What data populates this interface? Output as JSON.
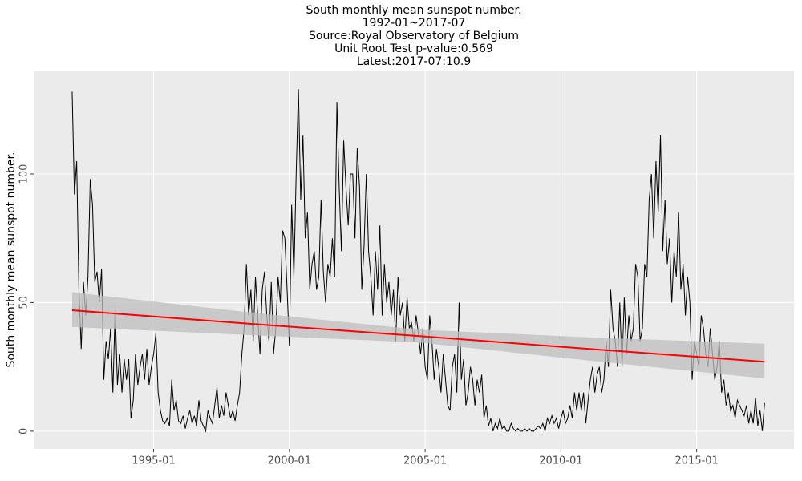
{
  "chart_data": {
    "type": "line",
    "title": [
      "South monthly mean sunspot number.",
      "1992-01~2017-07",
      "Source:Royal Observatory of Belgium",
      "Unit Root Test p-value:0.569",
      "Latest:2017-07:10.9"
    ],
    "y_label": "South monthly mean sunspot number.",
    "x": [
      "1992-01",
      "1992-02",
      "1992-03",
      "1992-04",
      "1992-05",
      "1992-06",
      "1992-07",
      "1992-08",
      "1992-09",
      "1992-10",
      "1992-11",
      "1992-12",
      "1993-01",
      "1993-02",
      "1993-03",
      "1993-04",
      "1993-05",
      "1993-06",
      "1993-07",
      "1993-08",
      "1993-09",
      "1993-10",
      "1993-11",
      "1993-12",
      "1994-01",
      "1994-02",
      "1994-03",
      "1994-04",
      "1994-05",
      "1994-06",
      "1994-07",
      "1994-08",
      "1994-09",
      "1994-10",
      "1994-11",
      "1994-12",
      "1995-01",
      "1995-02",
      "1995-03",
      "1995-04",
      "1995-05",
      "1995-06",
      "1995-07",
      "1995-08",
      "1995-09",
      "1995-10",
      "1995-11",
      "1995-12",
      "1996-01",
      "1996-02",
      "1996-03",
      "1996-04",
      "1996-05",
      "1996-06",
      "1996-07",
      "1996-08",
      "1996-09",
      "1996-10",
      "1996-11",
      "1996-12",
      "1997-01",
      "1997-02",
      "1997-03",
      "1997-04",
      "1997-05",
      "1997-06",
      "1997-07",
      "1997-08",
      "1997-09",
      "1997-10",
      "1997-11",
      "1997-12",
      "1998-01",
      "1998-02",
      "1998-03",
      "1998-04",
      "1998-05",
      "1998-06",
      "1998-07",
      "1998-08",
      "1998-09",
      "1998-10",
      "1998-11",
      "1998-12",
      "1999-01",
      "1999-02",
      "1999-03",
      "1999-04",
      "1999-05",
      "1999-06",
      "1999-07",
      "1999-08",
      "1999-09",
      "1999-10",
      "1999-11",
      "1999-12",
      "2000-01",
      "2000-02",
      "2000-03",
      "2000-04",
      "2000-05",
      "2000-06",
      "2000-07",
      "2000-08",
      "2000-09",
      "2000-10",
      "2000-11",
      "2000-12",
      "2001-01",
      "2001-02",
      "2001-03",
      "2001-04",
      "2001-05",
      "2001-06",
      "2001-07",
      "2001-08",
      "2001-09",
      "2001-10",
      "2001-11",
      "2001-12",
      "2002-01",
      "2002-02",
      "2002-03",
      "2002-04",
      "2002-05",
      "2002-06",
      "2002-07",
      "2002-08",
      "2002-09",
      "2002-10",
      "2002-11",
      "2002-12",
      "2003-01",
      "2003-02",
      "2003-03",
      "2003-04",
      "2003-05",
      "2003-06",
      "2003-07",
      "2003-08",
      "2003-09",
      "2003-10",
      "2003-11",
      "2003-12",
      "2004-01",
      "2004-02",
      "2004-03",
      "2004-04",
      "2004-05",
      "2004-06",
      "2004-07",
      "2004-08",
      "2004-09",
      "2004-10",
      "2004-11",
      "2004-12",
      "2005-01",
      "2005-02",
      "2005-03",
      "2005-04",
      "2005-05",
      "2005-06",
      "2005-07",
      "2005-08",
      "2005-09",
      "2005-10",
      "2005-11",
      "2005-12",
      "2006-01",
      "2006-02",
      "2006-03",
      "2006-04",
      "2006-05",
      "2006-06",
      "2006-07",
      "2006-08",
      "2006-09",
      "2006-10",
      "2006-11",
      "2006-12",
      "2007-01",
      "2007-02",
      "2007-03",
      "2007-04",
      "2007-05",
      "2007-06",
      "2007-07",
      "2007-08",
      "2007-09",
      "2007-10",
      "2007-11",
      "2007-12",
      "2008-01",
      "2008-02",
      "2008-03",
      "2008-04",
      "2008-05",
      "2008-06",
      "2008-07",
      "2008-08",
      "2008-09",
      "2008-10",
      "2008-11",
      "2008-12",
      "2009-01",
      "2009-02",
      "2009-03",
      "2009-04",
      "2009-05",
      "2009-06",
      "2009-07",
      "2009-08",
      "2009-09",
      "2009-10",
      "2009-11",
      "2009-12",
      "2010-01",
      "2010-02",
      "2010-03",
      "2010-04",
      "2010-05",
      "2010-06",
      "2010-07",
      "2010-08",
      "2010-09",
      "2010-10",
      "2010-11",
      "2010-12",
      "2011-01",
      "2011-02",
      "2011-03",
      "2011-04",
      "2011-05",
      "2011-06",
      "2011-07",
      "2011-08",
      "2011-09",
      "2011-10",
      "2011-11",
      "2011-12",
      "2012-01",
      "2012-02",
      "2012-03",
      "2012-04",
      "2012-05",
      "2012-06",
      "2012-07",
      "2012-08",
      "2012-09",
      "2012-10",
      "2012-11",
      "2012-12",
      "2013-01",
      "2013-02",
      "2013-03",
      "2013-04",
      "2013-05",
      "2013-06",
      "2013-07",
      "2013-08",
      "2013-09",
      "2013-10",
      "2013-11",
      "2013-12",
      "2014-01",
      "2014-02",
      "2014-03",
      "2014-04",
      "2014-05",
      "2014-06",
      "2014-07",
      "2014-08",
      "2014-09",
      "2014-10",
      "2014-11",
      "2014-12",
      "2015-01",
      "2015-02",
      "2015-03",
      "2015-04",
      "2015-05",
      "2015-06",
      "2015-07",
      "2015-08",
      "2015-09",
      "2015-10",
      "2015-11",
      "2015-12",
      "2016-01",
      "2016-02",
      "2016-03",
      "2016-04",
      "2016-05",
      "2016-06",
      "2016-07",
      "2016-08",
      "2016-09",
      "2016-10",
      "2016-11",
      "2016-12",
      "2017-01",
      "2017-02",
      "2017-03",
      "2017-04",
      "2017-05",
      "2017-06",
      "2017-07"
    ],
    "series": [
      {
        "color": "#000000",
        "values": [
          132,
          92,
          105,
          55,
          32,
          58,
          45,
          60,
          98,
          88,
          58,
          62,
          50,
          63,
          20,
          35,
          28,
          40,
          15,
          48,
          18,
          30,
          15,
          28,
          20,
          28,
          5,
          12,
          30,
          18,
          25,
          30,
          20,
          32,
          18,
          25,
          30,
          38,
          15,
          8,
          4,
          3,
          5,
          2,
          20,
          8,
          12,
          4,
          3,
          6,
          1,
          5,
          8,
          3,
          6,
          2,
          12,
          4,
          2,
          0,
          8,
          5,
          3,
          10,
          17,
          5,
          10,
          6,
          15,
          10,
          5,
          8,
          4,
          10,
          15,
          30,
          40,
          65,
          45,
          55,
          35,
          60,
          45,
          30,
          55,
          62,
          45,
          35,
          58,
          30,
          40,
          60,
          50,
          78,
          75,
          55,
          33,
          88,
          60,
          100,
          133,
          90,
          115,
          75,
          85,
          55,
          65,
          70,
          55,
          60,
          90,
          62,
          50,
          65,
          60,
          75,
          60,
          128,
          95,
          70,
          113,
          95,
          80,
          100,
          100,
          75,
          110,
          95,
          55,
          72,
          100,
          70,
          60,
          45,
          70,
          55,
          80,
          45,
          65,
          50,
          58,
          45,
          55,
          35,
          60,
          45,
          50,
          35,
          52,
          40,
          42,
          35,
          45,
          38,
          30,
          40,
          25,
          20,
          45,
          35,
          20,
          32,
          25,
          15,
          30,
          20,
          10,
          8,
          25,
          30,
          15,
          50,
          20,
          28,
          10,
          15,
          25,
          20,
          10,
          20,
          15,
          22,
          5,
          10,
          2,
          5,
          0,
          3,
          1,
          5,
          1,
          2,
          0,
          0,
          3,
          1,
          0,
          1,
          0,
          0,
          1,
          0,
          1,
          0,
          0,
          1,
          2,
          1,
          3,
          0,
          5,
          3,
          6,
          3,
          5,
          1,
          5,
          8,
          3,
          5,
          10,
          5,
          15,
          8,
          15,
          8,
          15,
          3,
          12,
          20,
          25,
          15,
          22,
          25,
          15,
          20,
          35,
          25,
          55,
          40,
          35,
          25,
          50,
          25,
          52,
          30,
          45,
          35,
          40,
          65,
          60,
          35,
          40,
          65,
          60,
          90,
          100,
          75,
          105,
          85,
          115,
          70,
          90,
          65,
          75,
          50,
          70,
          60,
          85,
          55,
          65,
          45,
          60,
          50,
          20,
          35,
          30,
          25,
          45,
          40,
          30,
          25,
          40,
          30,
          20,
          25,
          35,
          15,
          20,
          10,
          15,
          8,
          10,
          5,
          12,
          10,
          8,
          6,
          10,
          3,
          8,
          3,
          13,
          2,
          8,
          0,
          10.9
        ]
      }
    ],
    "trend": {
      "color": "#ff0000",
      "band_color": "#bebebe",
      "x": [
        "1992-01",
        "1998-04",
        "2004-10",
        "2011-01",
        "2017-07"
      ],
      "values": [
        47,
        42,
        37,
        32,
        27
      ],
      "lower": [
        40.5,
        37.5,
        34.5,
        27.5,
        20.5
      ],
      "upper": [
        54,
        46.5,
        39.5,
        36.5,
        34
      ]
    },
    "xlim": [
      "1990-08",
      "2018-08"
    ],
    "xticks": [
      "1995-01",
      "2000-01",
      "2005-01",
      "2010-01",
      "2015-01"
    ],
    "ylim": [
      -6.9,
      140.2
    ],
    "yticks": [
      0,
      50,
      100
    ],
    "grid": true
  }
}
